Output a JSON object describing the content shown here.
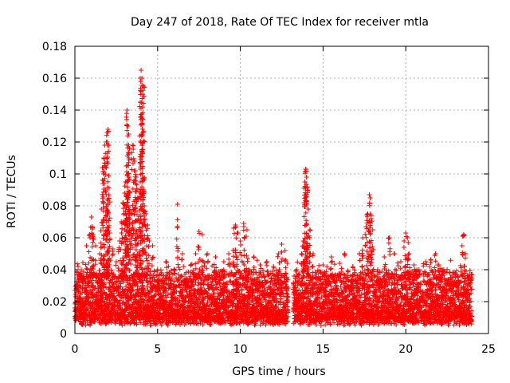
{
  "chart_data": {
    "type": "scatter",
    "title": "Day 247 of 2018, Rate Of TEC Index for receiver mtla",
    "xlabel": "GPS time / hours",
    "ylabel": "ROTI / TECUs",
    "xlim": [
      0,
      25
    ],
    "ylim": [
      0,
      0.18
    ],
    "x_ticks": [
      0,
      5,
      10,
      15,
      20,
      25
    ],
    "x_tick_labels": [
      "0",
      "5",
      "10",
      "15",
      "20",
      "25"
    ],
    "y_ticks": [
      0,
      0.02,
      0.04,
      0.06,
      0.08,
      0.1,
      0.12,
      0.14,
      0.16,
      0.18
    ],
    "y_tick_labels": [
      "0",
      "0.02",
      "0.04",
      "0.06",
      "0.08",
      "0.1",
      "0.12",
      "0.14",
      "0.16",
      "0.18"
    ],
    "grid": true,
    "marker": "+",
    "marker_color": "#ff0000",
    "data_gap_hours": [
      12.9,
      13.2
    ],
    "data_range_hours": [
      0,
      24
    ],
    "baseline_band": [
      0.005,
      0.035
    ],
    "series": [
      {
        "name": "ROTI",
        "color": "#ff0000",
        "points": [
          [
            0.1,
            0.03
          ],
          [
            0.3,
            0.036
          ],
          [
            0.5,
            0.033
          ],
          [
            0.7,
            0.055
          ],
          [
            0.9,
            0.062
          ],
          [
            1.0,
            0.073
          ],
          [
            1.05,
            0.067
          ],
          [
            1.1,
            0.062
          ],
          [
            1.25,
            0.055
          ],
          [
            1.5,
            0.05
          ],
          [
            1.6,
            0.078
          ],
          [
            1.7,
            0.104
          ],
          [
            1.75,
            0.11
          ],
          [
            1.8,
            0.118
          ],
          [
            1.9,
            0.12
          ],
          [
            1.95,
            0.126
          ],
          [
            2.0,
            0.128
          ],
          [
            2.05,
            0.118
          ],
          [
            2.1,
            0.063
          ],
          [
            2.3,
            0.053
          ],
          [
            2.5,
            0.045
          ],
          [
            2.7,
            0.058
          ],
          [
            2.8,
            0.07
          ],
          [
            2.9,
            0.082
          ],
          [
            3.0,
            0.088
          ],
          [
            3.05,
            0.095
          ],
          [
            3.1,
            0.105
          ],
          [
            3.15,
            0.14
          ],
          [
            3.2,
            0.13
          ],
          [
            3.25,
            0.125
          ],
          [
            3.3,
            0.116
          ],
          [
            3.4,
            0.075
          ],
          [
            3.5,
            0.118
          ],
          [
            3.6,
            0.108
          ],
          [
            3.65,
            0.102
          ],
          [
            3.7,
            0.098
          ],
          [
            3.75,
            0.09
          ],
          [
            3.8,
            0.085
          ],
          [
            3.9,
            0.077
          ],
          [
            3.95,
            0.145
          ],
          [
            4.0,
            0.165
          ],
          [
            4.05,
            0.16
          ],
          [
            4.1,
            0.15
          ],
          [
            4.15,
            0.155
          ],
          [
            4.2,
            0.08
          ],
          [
            4.3,
            0.075
          ],
          [
            4.4,
            0.068
          ],
          [
            4.5,
            0.058
          ],
          [
            4.7,
            0.055
          ],
          [
            5.0,
            0.04
          ],
          [
            5.5,
            0.045
          ],
          [
            6.0,
            0.04
          ],
          [
            6.2,
            0.081
          ],
          [
            6.5,
            0.05
          ],
          [
            7.0,
            0.043
          ],
          [
            7.3,
            0.05
          ],
          [
            7.5,
            0.064
          ],
          [
            7.7,
            0.062
          ],
          [
            8.0,
            0.05
          ],
          [
            8.5,
            0.048
          ],
          [
            9.0,
            0.045
          ],
          [
            9.3,
            0.05
          ],
          [
            9.6,
            0.066
          ],
          [
            9.7,
            0.068
          ],
          [
            9.8,
            0.063
          ],
          [
            10.0,
            0.058
          ],
          [
            10.2,
            0.069
          ],
          [
            10.4,
            0.065
          ],
          [
            10.8,
            0.048
          ],
          [
            11.2,
            0.043
          ],
          [
            11.6,
            0.045
          ],
          [
            12.0,
            0.042
          ],
          [
            12.3,
            0.05
          ],
          [
            12.5,
            0.056
          ],
          [
            12.7,
            0.052
          ],
          [
            13.4,
            0.04
          ],
          [
            13.7,
            0.05
          ],
          [
            13.8,
            0.058
          ],
          [
            13.85,
            0.082
          ],
          [
            13.9,
            0.095
          ],
          [
            13.95,
            0.103
          ],
          [
            14.0,
            0.098
          ],
          [
            14.05,
            0.09
          ],
          [
            14.1,
            0.078
          ],
          [
            14.2,
            0.065
          ],
          [
            14.4,
            0.05
          ],
          [
            15.0,
            0.043
          ],
          [
            15.5,
            0.048
          ],
          [
            16.0,
            0.044
          ],
          [
            16.3,
            0.05
          ],
          [
            16.8,
            0.042
          ],
          [
            17.2,
            0.05
          ],
          [
            17.4,
            0.06
          ],
          [
            17.6,
            0.067
          ],
          [
            17.7,
            0.075
          ],
          [
            17.8,
            0.087
          ],
          [
            17.85,
            0.085
          ],
          [
            17.9,
            0.072
          ],
          [
            18.0,
            0.065
          ],
          [
            18.3,
            0.04
          ],
          [
            18.7,
            0.048
          ],
          [
            19.0,
            0.06
          ],
          [
            19.3,
            0.05
          ],
          [
            19.7,
            0.045
          ],
          [
            19.9,
            0.058
          ],
          [
            20.0,
            0.063
          ],
          [
            20.1,
            0.06
          ],
          [
            20.2,
            0.05
          ],
          [
            20.5,
            0.043
          ],
          [
            20.8,
            0.04
          ],
          [
            21.2,
            0.045
          ],
          [
            21.5,
            0.046
          ],
          [
            21.8,
            0.05
          ],
          [
            22.0,
            0.043
          ],
          [
            22.3,
            0.04
          ],
          [
            22.7,
            0.035
          ],
          [
            23.0,
            0.038
          ],
          [
            23.2,
            0.03
          ],
          [
            23.4,
            0.055
          ],
          [
            23.5,
            0.062
          ],
          [
            23.6,
            0.05
          ],
          [
            23.8,
            0.035
          ],
          [
            24.0,
            0.037
          ]
        ]
      }
    ]
  }
}
